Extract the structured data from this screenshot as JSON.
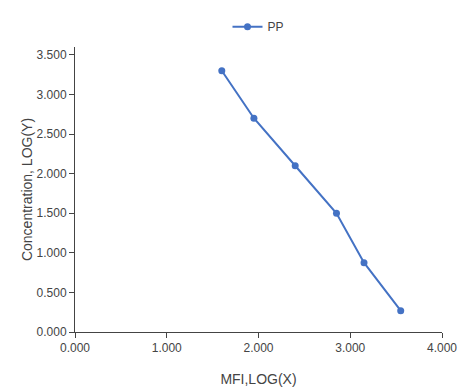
{
  "chart_data": {
    "type": "line",
    "xlabel": "MFI,LOG(X)",
    "ylabel": "Concentration, LOG(Y)",
    "x": [
      1.6,
      1.95,
      2.4,
      2.85,
      3.15,
      3.55
    ],
    "series": [
      {
        "name": "PP",
        "color": "#4472C4",
        "marker": "circle",
        "values": [
          3.3,
          2.7,
          2.1,
          1.5,
          0.875,
          0.27
        ]
      }
    ],
    "xlim": [
      0.0,
      4.0
    ],
    "ylim": [
      0.0,
      3.6
    ],
    "xticks": [
      {
        "value": 0,
        "label": "0.000"
      },
      {
        "value": 1,
        "label": "1.000"
      },
      {
        "value": 2,
        "label": "2.000"
      },
      {
        "value": 3,
        "label": "3.000"
      },
      {
        "value": 4,
        "label": "4.000"
      }
    ],
    "yticks": [
      {
        "value": 0,
        "label": "0.000"
      },
      {
        "value": 0.5,
        "label": "0.500"
      },
      {
        "value": 1,
        "label": "1.000"
      },
      {
        "value": 1.5,
        "label": "1.500"
      },
      {
        "value": 2,
        "label": "2.000"
      },
      {
        "value": 2.5,
        "label": "2.500"
      },
      {
        "value": 3,
        "label": "3.000"
      },
      {
        "value": 3.5,
        "label": "3.500"
      }
    ],
    "grid": false,
    "legend": "top"
  }
}
